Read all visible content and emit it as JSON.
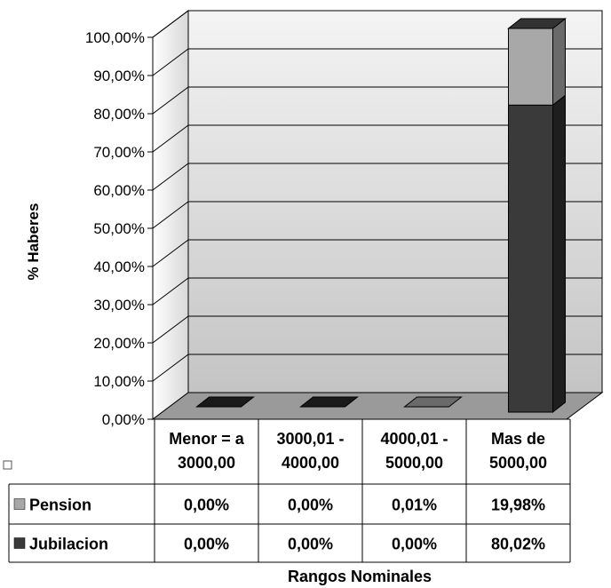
{
  "chart_data": {
    "type": "bar",
    "stacked": true,
    "three_d": true,
    "categories": [
      [
        "Menor = a",
        "3000,00"
      ],
      [
        "3000,01 -",
        "4000,00"
      ],
      [
        "4000,01 -",
        "5000,00"
      ],
      [
        "Mas de",
        "5000,00"
      ]
    ],
    "series": [
      {
        "name": "Pension",
        "values": [
          0.0,
          0.0,
          0.01,
          19.98
        ],
        "labels": [
          "0,00%",
          "0,00%",
          "0,01%",
          "19,98%"
        ],
        "color": "#a6a6a6"
      },
      {
        "name": "Jubilacion",
        "values": [
          0.0,
          0.0,
          0.0,
          80.02
        ],
        "labels": [
          "0,00%",
          "0,00%",
          "0,00%",
          "80,02%"
        ],
        "color": "#3c3c3c"
      }
    ],
    "ylabel": "% Haberes",
    "xlabel": "Rangos Nominales",
    "ylim": [
      0,
      100
    ],
    "yticks": [
      0,
      10,
      20,
      30,
      40,
      50,
      60,
      70,
      80,
      90,
      100
    ],
    "ytick_labels": [
      "0,00%",
      "10,00%",
      "20,00%",
      "30,00%",
      "40,00%",
      "50,00%",
      "60,00%",
      "70,00%",
      "80,00%",
      "90,00%",
      "100,00%"
    ],
    "grid": true,
    "legend": "data-table"
  }
}
